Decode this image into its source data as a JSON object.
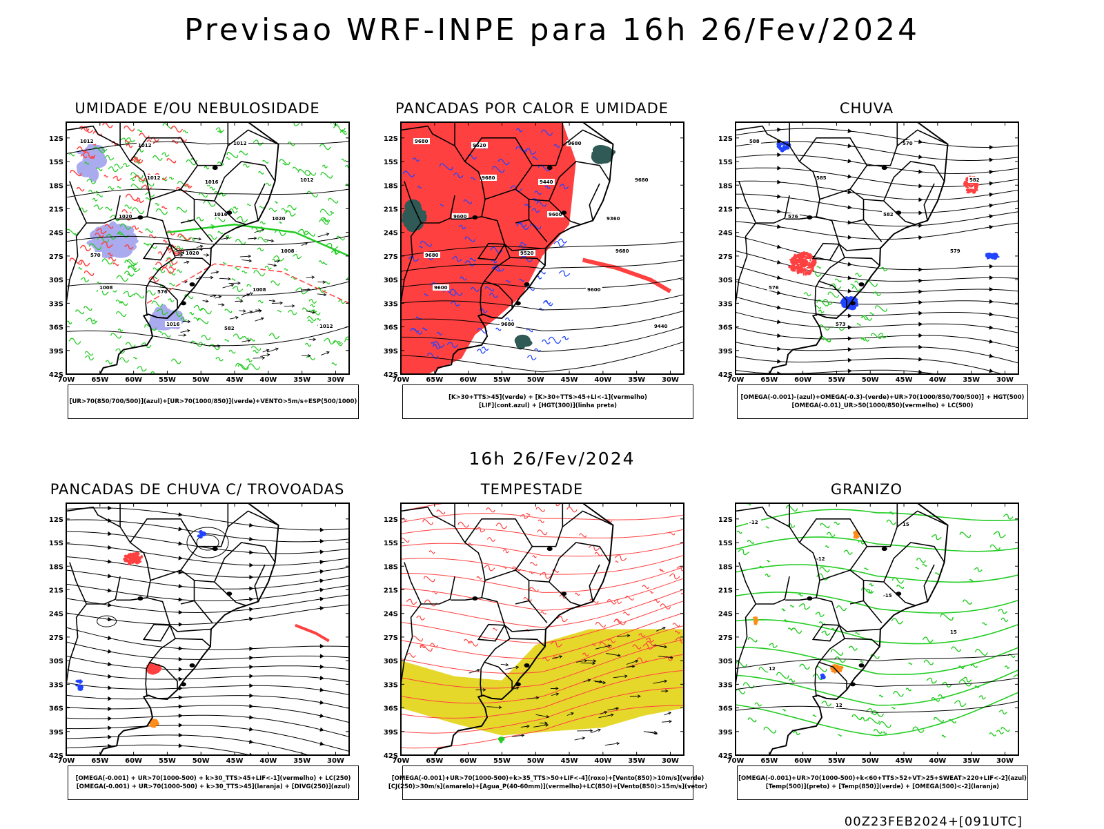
{
  "header": {
    "title": "Previsao WRF-INPE  para 16h 26/Fev/2024",
    "subtitle": "16h 26/Fev/2024",
    "footer": "00Z23FEB2024+[091UTC]"
  },
  "axes": {
    "lat_labels": [
      "12S",
      "15S",
      "18S",
      "21S",
      "24S",
      "27S",
      "30S",
      "33S",
      "36S",
      "39S",
      "42S"
    ],
    "lon_labels": [
      "70W",
      "65W",
      "60W",
      "55W",
      "50W",
      "45W",
      "40W",
      "35W",
      "30W"
    ]
  },
  "colors": {
    "green": "#22cc22",
    "red": "#ff4040",
    "blue": "#2244ff",
    "lavender": "#aaaaee",
    "yellow": "#e6d82a",
    "dark_teal": "#2f5a55",
    "orange": "#ff8c1a",
    "black": "#000000"
  },
  "panels": [
    {
      "id": "umidade",
      "title": "UMIDADE E/OU NEBULOSIDADE",
      "legend": [
        "[UR>70(850/700/500)](azul)+[UR>70(1000/850)](verde)+VENTO>5m/s+ESP(500/1000)"
      ],
      "contour_labels": [
        "1012",
        "1012",
        "1016",
        "1008",
        "1008",
        "1016",
        "1012",
        "1012",
        "1020",
        "1020",
        "1008",
        "1012",
        "1012",
        "1016",
        "1020",
        "570",
        "576",
        "582"
      ]
    },
    {
      "id": "pancadas-calor",
      "title": "PANCADAS POR CALOR E UMIDADE",
      "legend": [
        "[K>30+TTS>45](verde) + [K>30+TTS>45+LI<-1](vermelho)",
        "[LIF](cont.azul) + [HGT(300)](linha preta)"
      ],
      "contour_labels": [
        "9680",
        "9680",
        "9600",
        "9680",
        "9600",
        "9680",
        "9680",
        "9680",
        "9600",
        "9520",
        "9600",
        "9440",
        "9520",
        "9440",
        "9360",
        "9680"
      ]
    },
    {
      "id": "chuva",
      "title": "CHUVA",
      "legend": [
        "[OMEGA(-0.001)-(azul)+OMEGA(-0.3)-(verde)+UR>70(1000/850/700/500)] + HGT(500)",
        "[OMEGA(-0.01)_UR>50(1000/850)(vermelho) + LC(500)"
      ],
      "contour_labels": [
        "588",
        "585",
        "582",
        "579",
        "576",
        "573",
        "570",
        "582",
        "576"
      ]
    },
    {
      "id": "pancadas-trovoadas",
      "title": "PANCADAS DE CHUVA C/ TROVOADAS",
      "legend": [
        "[OMEGA(-0.001) + UR>70(1000-500) + k>30_TTS>45+LIF<-1](vermelho) + LC(250)",
        "[OMEGA(-0.001) + UR>70(1000-500) + k>30_TTS>45](laranja) + [DIVG(250)](azul)"
      ],
      "contour_labels": []
    },
    {
      "id": "tempestade",
      "title": "TEMPESTADE",
      "legend": [
        "[OMEGA(-0.001)+UR>70(1000-500)+k>35_TTS>50+LIF<-4](roxo)+[Vento(850)>10m/s](verde)",
        "[CJ(250)>30m/s](amarelo)+[Agua_P(40-60mm)](vermelho)+LC(850)+[Vento(850)>15m/s](vetor)"
      ],
      "contour_labels": []
    },
    {
      "id": "granizo",
      "title": "GRANIZO",
      "legend": [
        "[OMEGA(-0.001)+UR>70(1000-500)+k<60+TTS>52+VT>25+SWEAT>220+LIF<-2](azul)",
        "[Temp(500)](preto) + [Temp(850)](verde) + [OMEGA(500)<-2](laranja)"
      ],
      "contour_labels": [
        "-12",
        "-12",
        "-15",
        "15",
        "12",
        "12",
        "15"
      ]
    }
  ]
}
